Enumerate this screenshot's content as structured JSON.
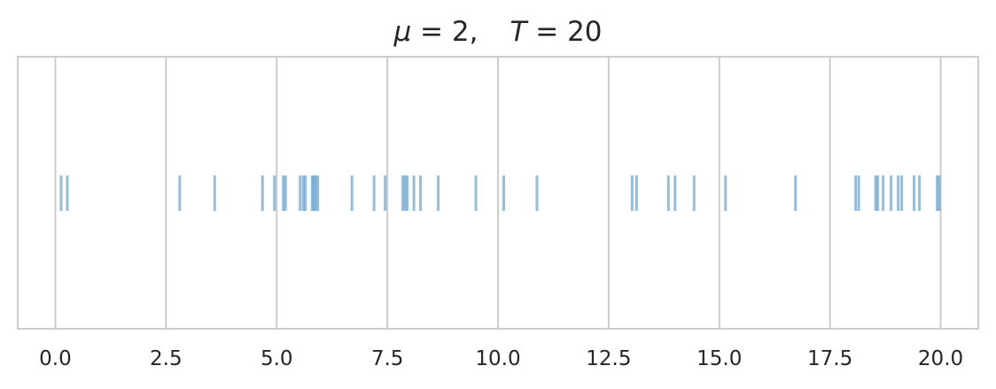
{
  "chart_data": {
    "type": "scatter",
    "title_parts": {
      "mu_symbol": "μ",
      "mu_eq": " = 2,",
      "t_symbol": "T",
      "t_eq": " = 20"
    },
    "xlabel": "",
    "ylabel": "",
    "xlim": [
      -0.85,
      20.85
    ],
    "xticks": [
      0.0,
      2.5,
      5.0,
      7.5,
      10.0,
      12.5,
      15.0,
      17.5,
      20.0
    ],
    "xtick_labels": [
      "0.0",
      "2.5",
      "5.0",
      "7.5",
      "10.0",
      "12.5",
      "15.0",
      "17.5",
      "20.0"
    ],
    "grid": true,
    "mark_color": "#3a89bf",
    "series": [
      {
        "values": [
          0.13,
          0.27,
          2.81,
          3.6,
          4.68,
          4.95,
          5.15,
          5.2,
          5.53,
          5.6,
          5.65,
          5.8,
          5.84,
          5.88,
          5.93,
          6.7,
          7.2,
          7.45,
          7.85,
          7.9,
          7.95,
          8.1,
          8.25,
          8.65,
          9.5,
          10.13,
          10.88,
          13.03,
          13.13,
          13.85,
          14.0,
          14.43,
          15.14,
          16.72,
          18.08,
          18.15,
          18.53,
          18.58,
          18.7,
          18.88,
          19.04,
          19.12,
          19.4,
          19.52,
          19.92,
          19.97
        ]
      }
    ]
  }
}
